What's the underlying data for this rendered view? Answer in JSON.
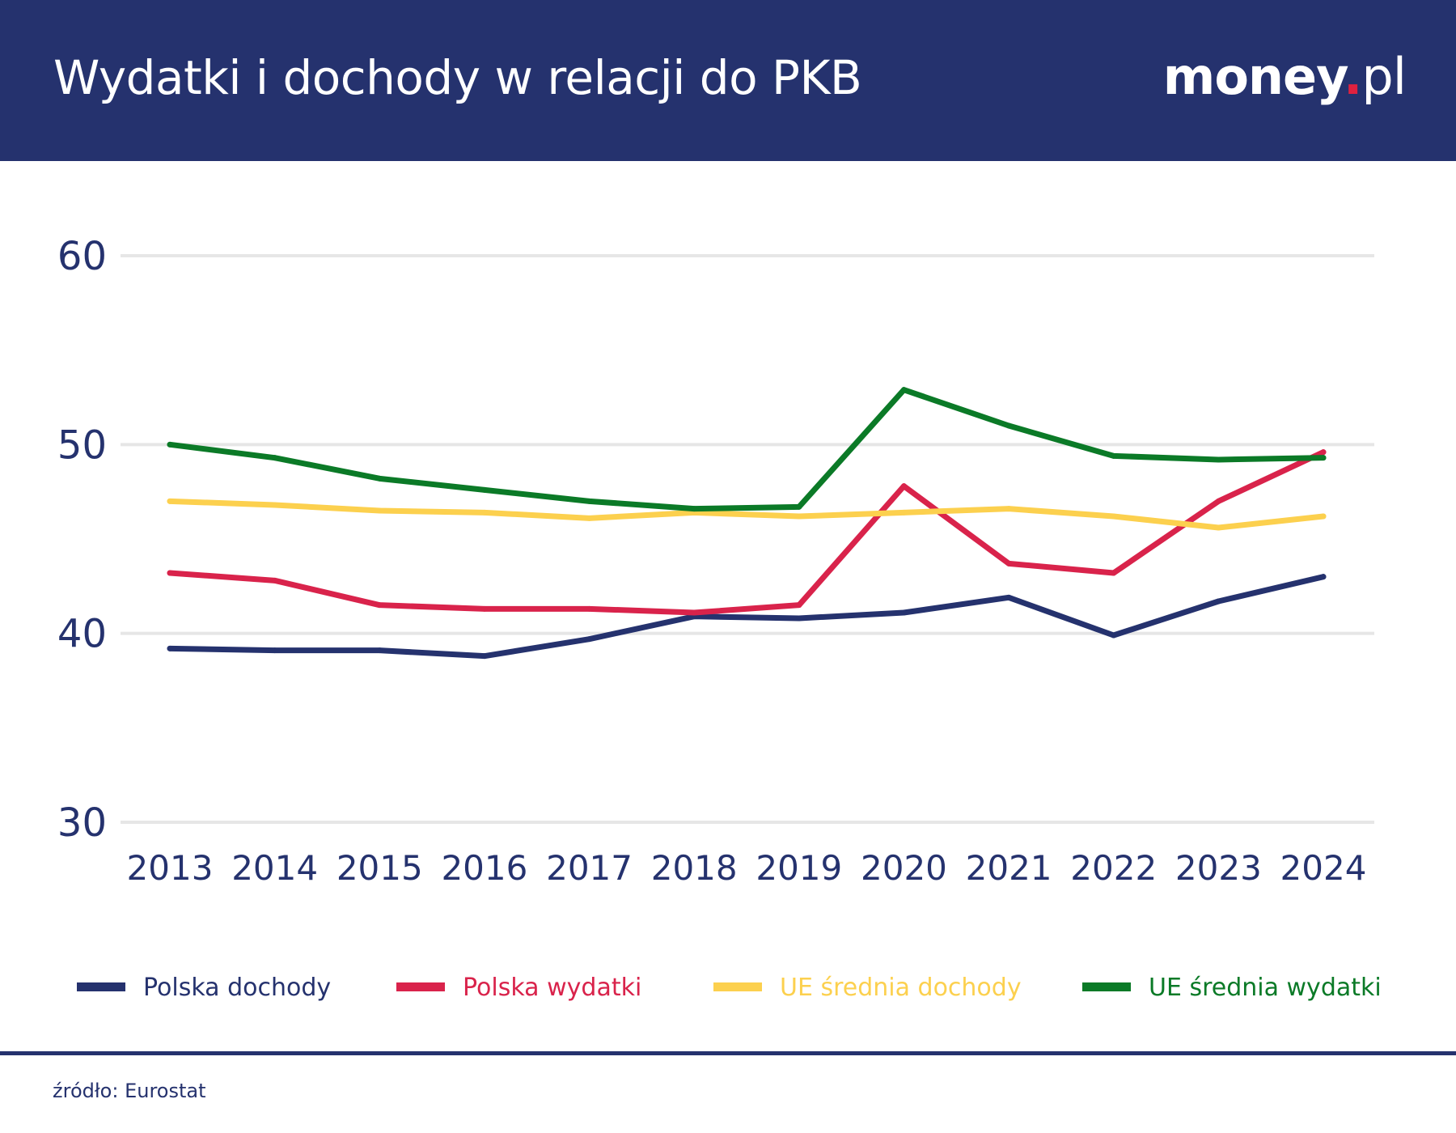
{
  "header": {
    "title": "Wydatki i dochody w relacji do PKB",
    "logo_main": "money",
    "logo_dot": ".",
    "logo_suffix": "pl"
  },
  "footer": {
    "source": "źródło: Eurostat"
  },
  "colors": {
    "header_bg": "#25326e",
    "grid": "#e6e6e6"
  },
  "chart_data": {
    "type": "line",
    "title": "Wydatki i dochody w relacji do PKB",
    "xlabel": "",
    "ylabel": "",
    "ylim": [
      30,
      60
    ],
    "yticks": [
      60,
      50,
      40,
      30
    ],
    "grid": true,
    "legend_position": "bottom",
    "categories": [
      "2013",
      "2014",
      "2015",
      "2016",
      "2017",
      "2018",
      "2019",
      "2020",
      "2021",
      "2022",
      "2023",
      "2024"
    ],
    "series": [
      {
        "name": "Polska dochody",
        "color": "#25326e",
        "values": [
          39.2,
          39.1,
          39.1,
          38.8,
          39.7,
          40.9,
          40.8,
          41.1,
          41.9,
          39.9,
          41.7,
          43.0
        ]
      },
      {
        "name": "Polska wydatki",
        "color": "#d9234b",
        "values": [
          43.2,
          42.8,
          41.5,
          41.3,
          41.3,
          41.1,
          41.5,
          47.8,
          43.7,
          43.2,
          47.0,
          49.6
        ]
      },
      {
        "name": "UE średnia dochody",
        "color": "#fcd04e",
        "values": [
          47.0,
          46.8,
          46.5,
          46.4,
          46.1,
          46.4,
          46.2,
          46.4,
          46.6,
          46.2,
          45.6,
          46.2
        ]
      },
      {
        "name": "UE średnia wydatki",
        "color": "#0b7a27",
        "values": [
          50.0,
          49.3,
          48.2,
          47.6,
          47.0,
          46.6,
          46.7,
          52.9,
          51.0,
          49.4,
          49.2,
          49.3
        ]
      }
    ]
  }
}
